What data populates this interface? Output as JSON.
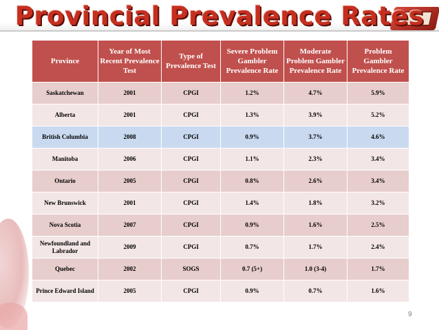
{
  "slide": {
    "title": "Provincial Prevalence Rates",
    "page_number": "9"
  },
  "table": {
    "headers": [
      "Province",
      "Year of Most Recent Prevalence Test",
      "Type of Prevalence Test",
      "Severe Problem Gambler Prevalence Rate",
      "Moderate Problem Gambler Prevalence Rate",
      "Problem Gambler Prevalence Rate"
    ],
    "rows": [
      [
        "Saskatchewan",
        "2001",
        "CPGI",
        "1.2%",
        "4.7%",
        "5.9%"
      ],
      [
        "Alberta",
        "2001",
        "CPGI",
        "1.3%",
        "3.9%",
        "5.2%"
      ],
      [
        "British Columbia",
        "2008",
        "CPGI",
        "0.9%",
        "3.7%",
        "4.6%"
      ],
      [
        "Manitoba",
        "2006",
        "CPGI",
        "1.1%",
        "2.3%",
        "3.4%"
      ],
      [
        "Ontario",
        "2005",
        "CPGI",
        "0.8%",
        "2.6%",
        "3.4%"
      ],
      [
        "New Brunswick",
        "2001",
        "CPGI",
        "1.4%",
        "1.8%",
        "3.2%"
      ],
      [
        "Nova Scotia",
        "2007",
        "CPGI",
        "0.9%",
        "1.6%",
        "2.5%"
      ],
      [
        "Newfoundland and Labrador",
        "2009",
        "CPGI",
        "0.7%",
        "1.7%",
        "2.4%"
      ],
      [
        "Quebec",
        "2002",
        "SOGS",
        "0.7 (5+)",
        "1.0 (3-4)",
        "1.7%"
      ],
      [
        "Prince Edward Island",
        "2005",
        "CPGI",
        "0.9%",
        "0.7%",
        "1.6%"
      ]
    ],
    "highlighted_row": 2
  },
  "colors": {
    "title": "#c62f1f",
    "header_bg": "#c0504d",
    "row_odd": "#e8cdcd",
    "row_even": "#f3e6e6",
    "row_highlight": "#c9daf0"
  }
}
